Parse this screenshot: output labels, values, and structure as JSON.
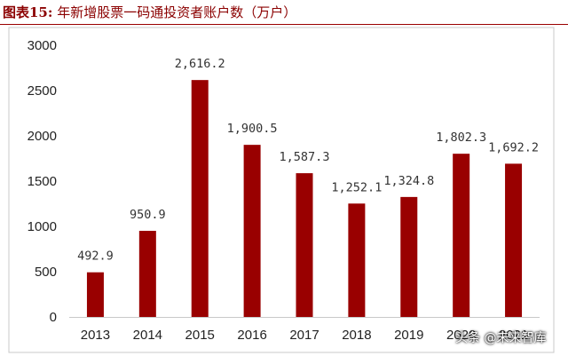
{
  "figure_title": {
    "label": "图表15:",
    "text": "年新增股票一码通投资者账户数（万户）"
  },
  "chart_data": {
    "type": "bar",
    "categories": [
      "2013",
      "2014",
      "2015",
      "2016",
      "2017",
      "2018",
      "2019",
      "2020",
      "2021"
    ],
    "values": [
      492.9,
      950.9,
      2616.2,
      1900.5,
      1587.3,
      1252.1,
      1324.8,
      1802.3,
      1692.2
    ],
    "value_labels": [
      "492.9",
      "950.9",
      "2,616.2",
      "1,900.5",
      "1,587.3",
      "1,252.1",
      "1,324.8",
      "1,802.3",
      "1,692.2"
    ],
    "ylim": [
      0,
      3000
    ],
    "yticks": [
      "0",
      "500",
      "1000",
      "1500",
      "2000",
      "2500",
      "3000"
    ],
    "grid": false,
    "bar_color": "#990000"
  },
  "watermark": "头条 @未来智库"
}
